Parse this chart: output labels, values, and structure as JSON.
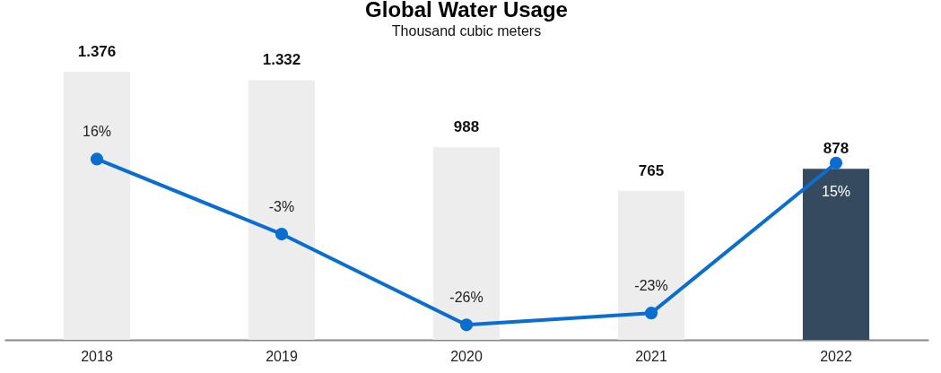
{
  "chart_data": {
    "type": "bar",
    "title": "Global Water Usage",
    "subtitle": "Thousand cubic meters",
    "categories": [
      "2018",
      "2019",
      "2020",
      "2021",
      "2022"
    ],
    "series": [
      {
        "values": [
          1376,
          1332,
          988,
          765,
          878
        ],
        "value_labels": [
          "1.376",
          "1.332",
          "988",
          "765",
          "878"
        ],
        "colors": [
          "#ededee",
          "#ededee",
          "#ededee",
          "#ededee",
          "#354a5f"
        ]
      },
      {
        "type": "line",
        "axis": "y2",
        "color": "#0a6ed1",
        "values": [
          16,
          -3,
          -26,
          -23,
          15
        ],
        "value_labels": [
          "16%",
          "-3%",
          "-26%",
          "-23%",
          "15%"
        ]
      }
    ],
    "marker": "circle",
    "line_style": "solid",
    "grid": false,
    "tick_labels": "x"
  }
}
